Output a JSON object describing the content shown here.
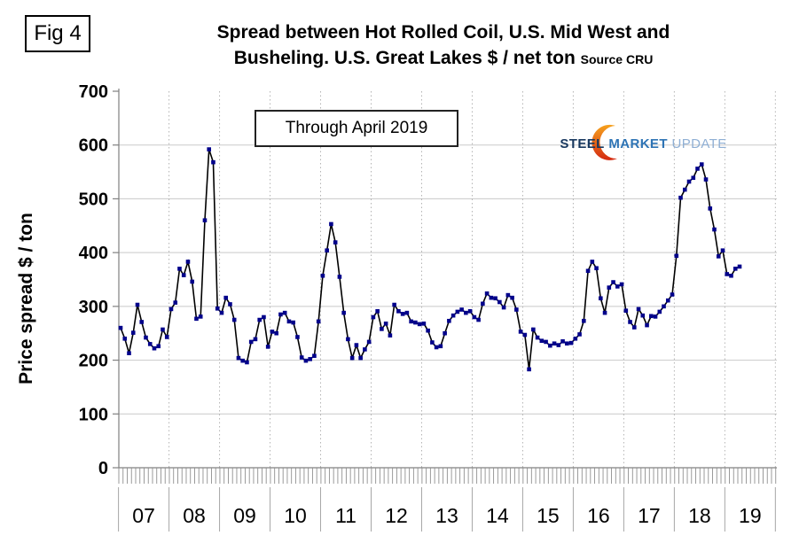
{
  "fig_label": "Fig 4",
  "title": {
    "line1": "Spread between Hot Rolled Coil, U.S. Mid West and",
    "line2": "Busheling. U.S. Great Lakes  $ / net ton",
    "source": "Source CRU"
  },
  "annotation": "Through April 2019",
  "logo": {
    "steel": "STEEL",
    "market": "MARKET",
    "update": "UPDATE",
    "steel_color": "#17375E",
    "market_color": "#2E74B5",
    "update_color": "#8FAFD4",
    "crescent_top_color": "#F6A21D",
    "crescent_bottom_color": "#D42A12"
  },
  "chart_data": {
    "type": "line",
    "title": "Spread between Hot Rolled Coil, U.S. Mid West and Busheling. U.S. Great Lakes $ / net ton",
    "xlabel": "",
    "ylabel": "Price spread $ / ton",
    "ylim": [
      0,
      700
    ],
    "yticks": [
      0,
      100,
      200,
      300,
      400,
      500,
      600,
      700
    ],
    "x_year_labels": [
      "07",
      "08",
      "09",
      "10",
      "11",
      "12",
      "13",
      "14",
      "15",
      "16",
      "17",
      "18",
      "19"
    ],
    "x_start": "2007-01",
    "x_end": "2019-04",
    "grid": "horizontal solid, vertical dotted at year boundaries",
    "legend_position": "none",
    "line_color": "#000000",
    "marker_color": "#00008B",
    "series": [
      {
        "name": "Price spread",
        "values": [
          260,
          240,
          213,
          251,
          303,
          271,
          242,
          230,
          222,
          226,
          257,
          243,
          295,
          307,
          370,
          358,
          383,
          346,
          277,
          281,
          460,
          592,
          568,
          296,
          288,
          316,
          304,
          275,
          204,
          199,
          196,
          234,
          239,
          275,
          280,
          225,
          253,
          250,
          285,
          288,
          272,
          270,
          243,
          205,
          199,
          202,
          208,
          272,
          357,
          404,
          453,
          419,
          355,
          288,
          239,
          204,
          228,
          204,
          220,
          234,
          280,
          291,
          258,
          268,
          246,
          303,
          291,
          286,
          288,
          272,
          270,
          267,
          268,
          255,
          233,
          224,
          226,
          250,
          273,
          283,
          290,
          294,
          288,
          291,
          280,
          275,
          305,
          324,
          316,
          315,
          308,
          298,
          321,
          316,
          294,
          253,
          247,
          183,
          257,
          242,
          236,
          234,
          227,
          231,
          228,
          235,
          231,
          232,
          240,
          248,
          273,
          366,
          383,
          371,
          315,
          288,
          335,
          345,
          337,
          341,
          292,
          271,
          261,
          295,
          283,
          265,
          282,
          281,
          290,
          300,
          311,
          322,
          394,
          502,
          517,
          532,
          539,
          556,
          564,
          536,
          482,
          443,
          393,
          404,
          360,
          357,
          370,
          374
        ]
      }
    ]
  }
}
